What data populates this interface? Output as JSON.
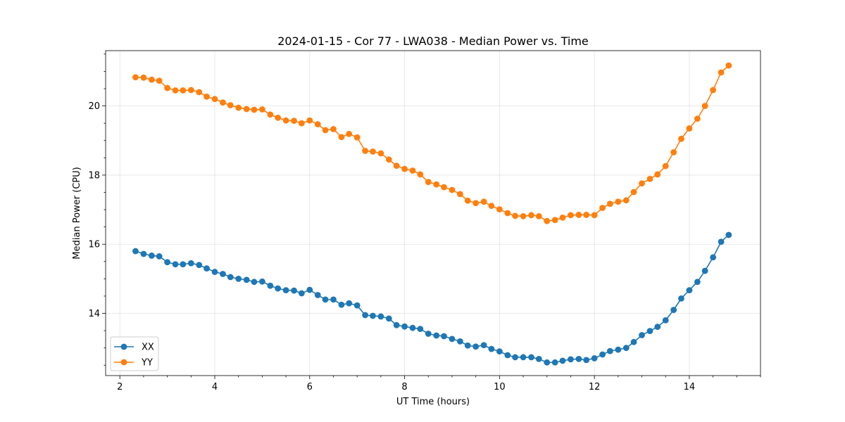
{
  "chart_data": {
    "type": "line",
    "title": "2024-01-15 - Cor 77 - LWA038 - Median Power vs. Time",
    "xlabel": "UT Time (hours)",
    "ylabel": "Median Power (CPU)",
    "xlim": [
      1.7,
      15.5
    ],
    "ylim": [
      12.2,
      21.6
    ],
    "xticks": [
      2,
      4,
      6,
      8,
      10,
      12,
      14
    ],
    "yticks": [
      14,
      16,
      18,
      20
    ],
    "x_minor_step": 0.5,
    "y_minor_step": 0.5,
    "grid": true,
    "legend_position": "lower-left",
    "x": [
      2.33,
      2.5,
      2.67,
      2.83,
      3.0,
      3.17,
      3.33,
      3.5,
      3.67,
      3.83,
      4.0,
      4.17,
      4.33,
      4.5,
      4.67,
      4.83,
      5.0,
      5.17,
      5.33,
      5.5,
      5.67,
      5.83,
      6.0,
      6.17,
      6.33,
      6.5,
      6.67,
      6.83,
      7.0,
      7.17,
      7.33,
      7.5,
      7.67,
      7.83,
      8.0,
      8.17,
      8.33,
      8.5,
      8.67,
      8.83,
      9.0,
      9.17,
      9.33,
      9.5,
      9.67,
      9.83,
      10.0,
      10.17,
      10.33,
      10.5,
      10.67,
      10.83,
      11.0,
      11.17,
      11.33,
      11.5,
      11.67,
      11.83,
      12.0,
      12.17,
      12.33,
      12.5,
      12.67,
      12.83,
      13.0,
      13.17,
      13.33,
      13.5,
      13.67,
      13.83,
      14.0,
      14.17,
      14.33,
      14.5,
      14.67,
      14.83
    ],
    "series": [
      {
        "name": "XX",
        "color": "#1f77b4",
        "values": [
          15.8,
          15.72,
          15.67,
          15.65,
          15.48,
          15.42,
          15.42,
          15.45,
          15.4,
          15.3,
          15.2,
          15.14,
          15.05,
          15.0,
          14.97,
          14.91,
          14.92,
          14.8,
          14.72,
          14.67,
          14.66,
          14.58,
          14.68,
          14.53,
          14.4,
          14.4,
          14.25,
          14.29,
          14.23,
          13.95,
          13.93,
          13.91,
          13.85,
          13.66,
          13.62,
          13.58,
          13.55,
          13.41,
          13.36,
          13.34,
          13.26,
          13.19,
          13.07,
          13.04,
          13.08,
          12.97,
          12.9,
          12.79,
          12.73,
          12.73,
          12.73,
          12.68,
          12.58,
          12.58,
          12.63,
          12.67,
          12.68,
          12.65,
          12.7,
          12.81,
          12.91,
          12.95,
          13.0,
          13.17,
          13.37,
          13.49,
          13.61,
          13.8,
          14.1,
          14.43,
          14.67,
          14.91,
          15.23,
          15.62,
          16.07,
          16.27
        ]
      },
      {
        "name": "YY",
        "color": "#ff7f0e",
        "values": [
          20.83,
          20.82,
          20.76,
          20.73,
          20.52,
          20.45,
          20.45,
          20.46,
          20.4,
          20.27,
          20.2,
          20.1,
          20.02,
          19.95,
          19.91,
          19.89,
          19.9,
          19.75,
          19.66,
          19.58,
          19.57,
          19.5,
          19.58,
          19.47,
          19.3,
          19.33,
          19.1,
          19.19,
          19.09,
          18.7,
          18.68,
          18.63,
          18.45,
          18.27,
          18.18,
          18.13,
          18.02,
          17.8,
          17.73,
          17.65,
          17.57,
          17.45,
          17.26,
          17.19,
          17.23,
          17.11,
          17.01,
          16.9,
          16.82,
          16.81,
          16.84,
          16.81,
          16.67,
          16.7,
          16.77,
          16.84,
          16.85,
          16.85,
          16.84,
          17.05,
          17.17,
          17.23,
          17.27,
          17.51,
          17.76,
          17.89,
          18.02,
          18.26,
          18.66,
          19.05,
          19.35,
          19.63,
          20.0,
          20.46,
          20.97,
          21.17
        ]
      }
    ]
  }
}
